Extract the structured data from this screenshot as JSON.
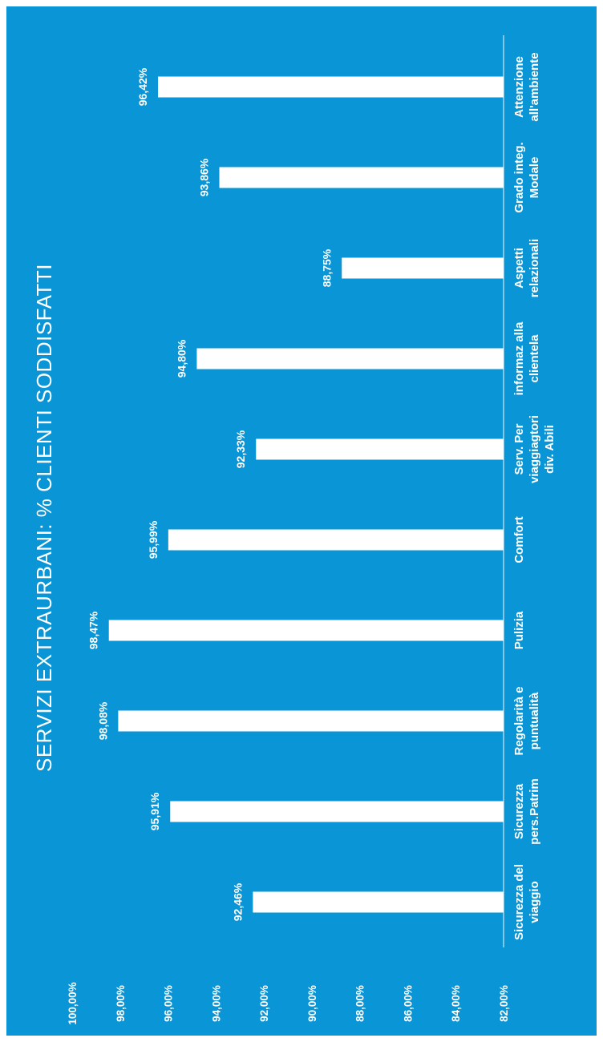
{
  "chart_data": {
    "type": "bar",
    "orientation": "rotated-vertical",
    "title": "SERVIZI EXTRAURBANI: % CLIENTI SODDISFATTI",
    "categories": [
      [
        "Sicurezza del",
        "viaggio"
      ],
      [
        "Sicurezza",
        "pers.Patrim"
      ],
      [
        "Regolarità e",
        "puntualità"
      ],
      [
        "Pulizia"
      ],
      [
        "Comfort"
      ],
      [
        "Serv. Per",
        "viaggiagtori",
        "div. Abili"
      ],
      [
        "informaz alla",
        "clientela"
      ],
      [
        "Aspetti",
        "relazionali"
      ],
      [
        "Grado integ.",
        "Modale"
      ],
      [
        "Attenzione",
        "all'ambiente"
      ]
    ],
    "values": [
      92.46,
      95.91,
      98.08,
      98.47,
      95.99,
      92.33,
      94.8,
      88.75,
      93.86,
      96.42
    ],
    "value_labels": [
      "92,46%",
      "95,91%",
      "98,08%",
      "98,47%",
      "95,99%",
      "92,33%",
      "94,80%",
      "88,75%",
      "93,86%",
      "96,42%"
    ],
    "ylim": [
      82,
      100
    ],
    "ticks": [
      82,
      84,
      86,
      88,
      90,
      92,
      94,
      96,
      98,
      100
    ],
    "tick_labels": [
      "82,00%",
      "84,00%",
      "86,00%",
      "88,00%",
      "90,00%",
      "92,00%",
      "94,00%",
      "96,00%",
      "98,00%",
      "100,00%"
    ],
    "grid": false,
    "legend": "none",
    "colors": {
      "background": "#0a96d6",
      "bar": "#ffffff",
      "text": "#ffffff",
      "axis": "#cfeaf7"
    }
  }
}
